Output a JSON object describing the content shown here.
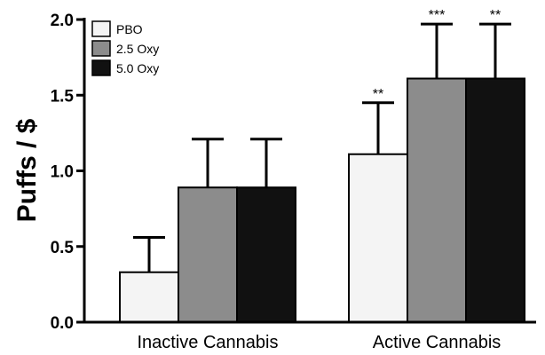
{
  "chart_data": {
    "type": "bar",
    "ylabel": "Puffs / $",
    "xlabel": "",
    "ylim": [
      0,
      2.0
    ],
    "yticks": [
      "0.0",
      "0.5",
      "1.0",
      "1.5",
      "2.0"
    ],
    "categories": [
      "Inactive Cannabis",
      "Active Cannabis"
    ],
    "series": [
      {
        "name": "PBO",
        "color": "#f4f4f4",
        "values": [
          0.33,
          1.11
        ],
        "errors": [
          0.23,
          0.34
        ],
        "significance": [
          "",
          "**"
        ]
      },
      {
        "name": "2.5 Oxy",
        "color": "#8c8c8c",
        "values": [
          0.89,
          1.61
        ],
        "errors": [
          0.32,
          0.36
        ],
        "significance": [
          "",
          "***"
        ]
      },
      {
        "name": "5.0 Oxy",
        "color": "#111111",
        "values": [
          0.89,
          1.61
        ],
        "errors": [
          0.32,
          0.36
        ],
        "significance": [
          "",
          "**"
        ]
      }
    ],
    "legend_position": "top-left",
    "grid": false
  }
}
